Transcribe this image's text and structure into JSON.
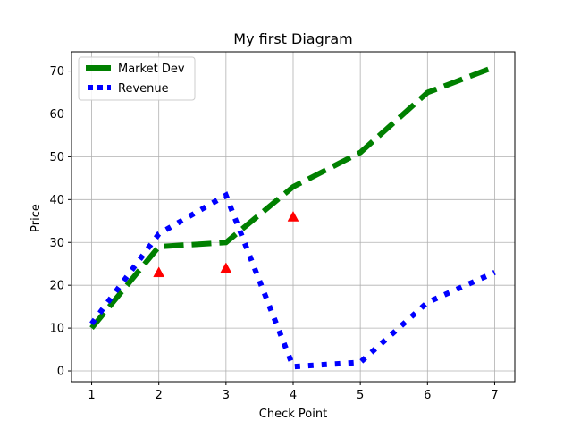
{
  "chart_data": {
    "type": "line",
    "title": "My first Diagram",
    "xlabel": "Check Point",
    "ylabel": "Price",
    "xlim": [
      0.7,
      7.3
    ],
    "ylim": [
      -2.5,
      74.5
    ],
    "xticks": [
      1,
      2,
      3,
      4,
      5,
      6,
      7
    ],
    "yticks": [
      0,
      10,
      20,
      30,
      40,
      50,
      60,
      70
    ],
    "grid": true,
    "legend_position": "top-left",
    "series": [
      {
        "name": "Market Dev",
        "color": "#008000",
        "style": "dashed",
        "x": [
          1,
          2,
          3,
          4,
          5,
          6,
          7
        ],
        "y": [
          10,
          29,
          30,
          43,
          51,
          65,
          71
        ]
      },
      {
        "name": "Revenue",
        "color": "#0000ff",
        "style": "dotted",
        "x": [
          1,
          2,
          3,
          4,
          5,
          6,
          7
        ],
        "y": [
          11,
          32,
          41,
          1,
          2,
          16,
          23
        ]
      }
    ],
    "markers": {
      "color": "#ff0000",
      "shape": "triangle-up",
      "x": [
        2,
        3,
        4
      ],
      "y": [
        23,
        24,
        36
      ]
    }
  }
}
